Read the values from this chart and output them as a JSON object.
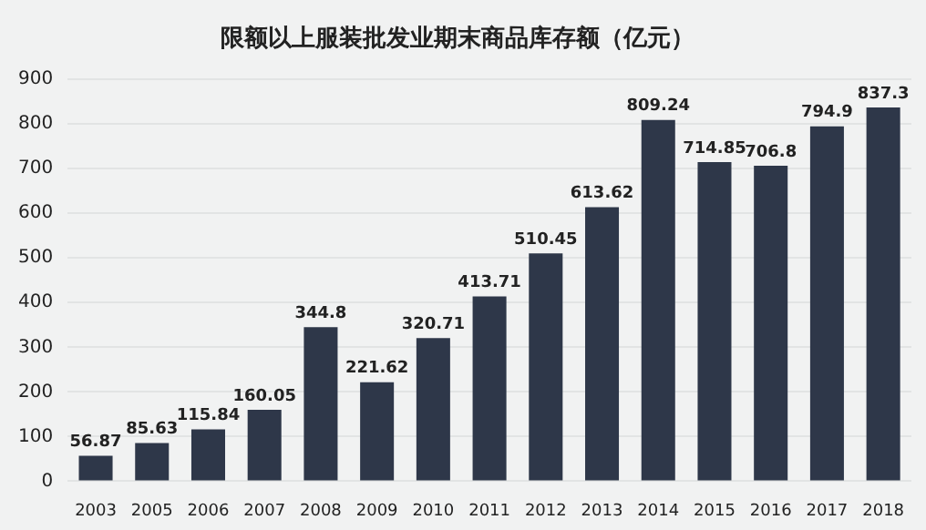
{
  "chart_data": {
    "type": "bar",
    "title": "限额以上服装批发业期末商品库存额（亿元）",
    "categories": [
      "2003",
      "2005",
      "2006",
      "2007",
      "2008",
      "2009",
      "2010",
      "2011",
      "2012",
      "2013",
      "2014",
      "2015",
      "2016",
      "2017",
      "2018"
    ],
    "values": [
      56.87,
      85.63,
      115.84,
      160.05,
      344.8,
      221.62,
      320.71,
      413.71,
      510.45,
      613.62,
      809.24,
      714.85,
      706.8,
      794.9,
      837.3
    ],
    "color": "#2e3749",
    "ylim": [
      0,
      900
    ],
    "yticks": [
      0,
      100,
      200,
      300,
      400,
      500,
      600,
      700,
      800,
      900
    ],
    "grid": "y",
    "data_labels": true
  }
}
